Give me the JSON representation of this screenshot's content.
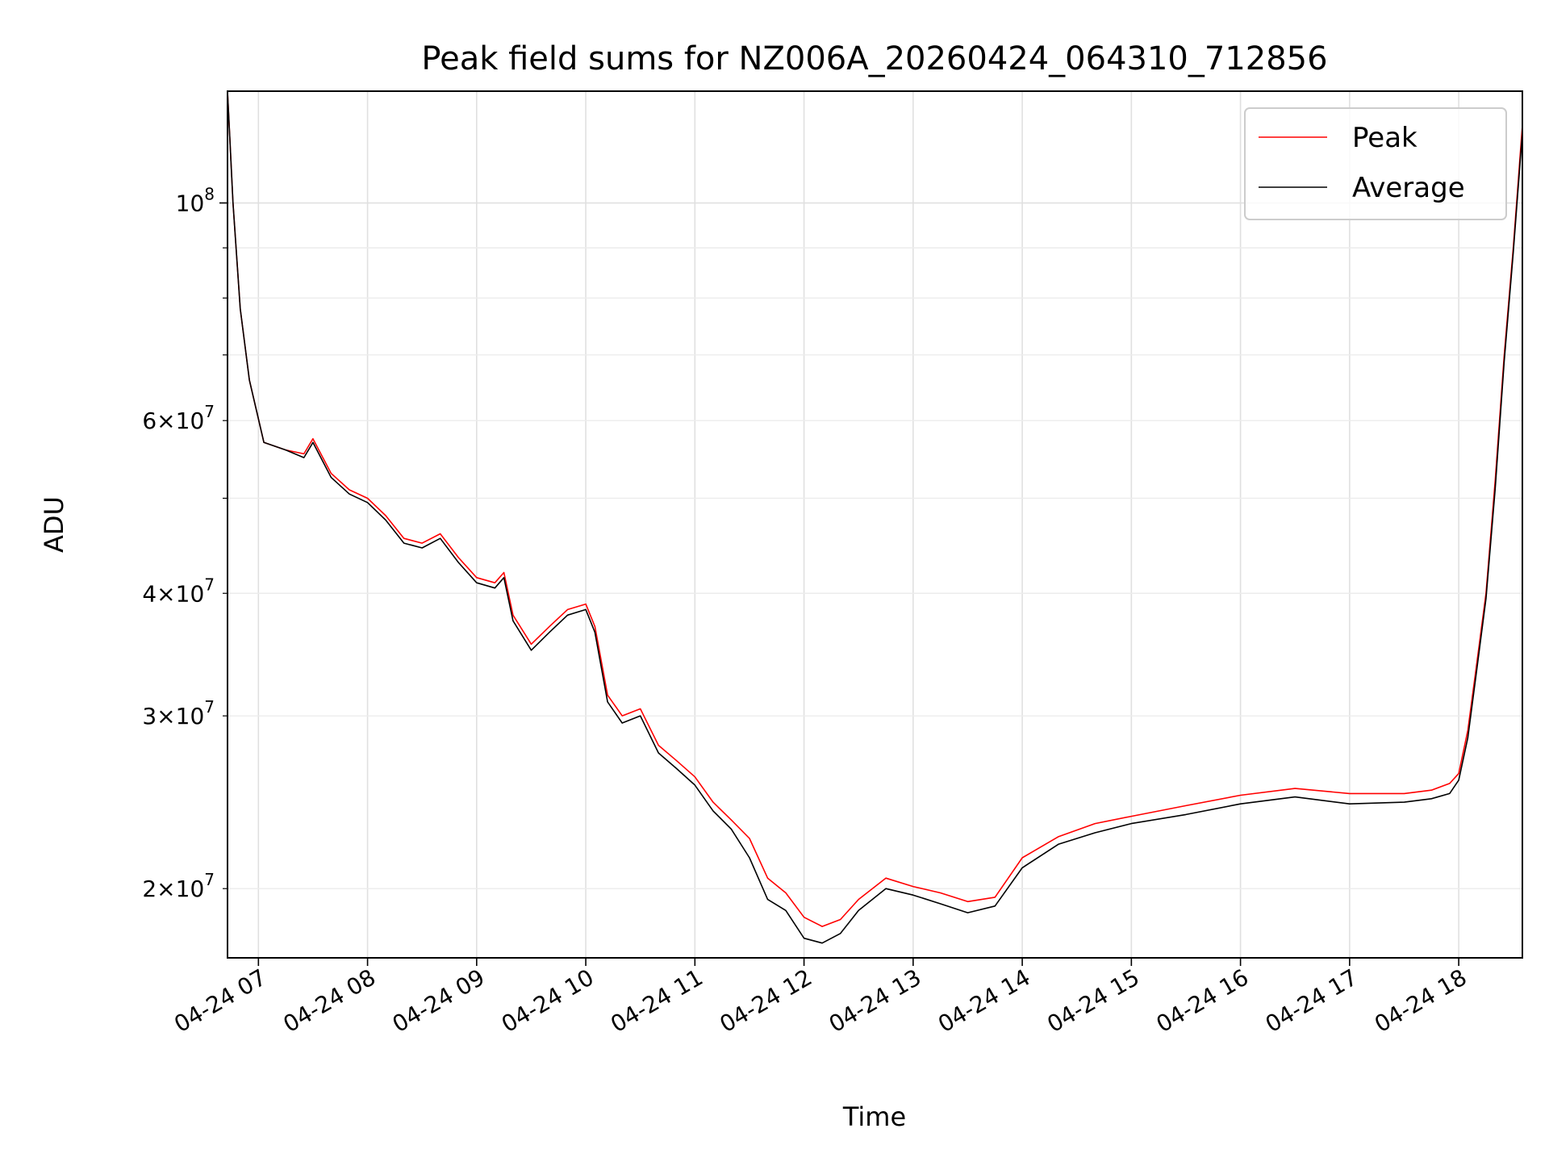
{
  "chart_data": {
    "type": "line",
    "title": "Peak field sums for NZ006A_20260424_064310_712856",
    "xlabel": "Time",
    "ylabel": "ADU",
    "yscale": "log",
    "grid": true,
    "legend_position": "top-right",
    "xlim": [
      "2026-04-24 06:43",
      "2026-04-24 18:35"
    ],
    "ylim": [
      17000000,
      130000000
    ],
    "x_ticks": [
      {
        "value": "2026-04-24 07:00",
        "label": "04-24 07"
      },
      {
        "value": "2026-04-24 08:00",
        "label": "04-24 08"
      },
      {
        "value": "2026-04-24 09:00",
        "label": "04-24 09"
      },
      {
        "value": "2026-04-24 10:00",
        "label": "04-24 10"
      },
      {
        "value": "2026-04-24 11:00",
        "label": "04-24 11"
      },
      {
        "value": "2026-04-24 12:00",
        "label": "04-24 12"
      },
      {
        "value": "2026-04-24 13:00",
        "label": "04-24 13"
      },
      {
        "value": "2026-04-24 14:00",
        "label": "04-24 14"
      },
      {
        "value": "2026-04-24 15:00",
        "label": "04-24 15"
      },
      {
        "value": "2026-04-24 16:00",
        "label": "04-24 16"
      },
      {
        "value": "2026-04-24 17:00",
        "label": "04-24 17"
      },
      {
        "value": "2026-04-24 18:00",
        "label": "04-24 18"
      }
    ],
    "y_major_ticks": [
      {
        "value": 100000000,
        "mantissa": "",
        "exponent": "8"
      }
    ],
    "y_minor_ticks": [
      {
        "value": 20000000,
        "mantissa": "2",
        "exponent": "7"
      },
      {
        "value": 30000000,
        "mantissa": "3",
        "exponent": "7"
      },
      {
        "value": 40000000,
        "mantissa": "4",
        "exponent": "7"
      },
      {
        "value": 50000000,
        "mantissa": "",
        "exponent": ""
      },
      {
        "value": 60000000,
        "mantissa": "6",
        "exponent": "7"
      },
      {
        "value": 70000000,
        "mantissa": "",
        "exponent": ""
      },
      {
        "value": 80000000,
        "mantissa": "",
        "exponent": ""
      },
      {
        "value": 90000000,
        "mantissa": "",
        "exponent": ""
      }
    ],
    "series": [
      {
        "name": "Peak",
        "color": "#ff0000",
        "x": [
          "2026-04-24 06:43",
          "2026-04-24 06:46",
          "2026-04-24 06:50",
          "2026-04-24 06:55",
          "2026-04-24 07:03",
          "2026-04-24 07:15",
          "2026-04-24 07:25",
          "2026-04-24 07:30",
          "2026-04-24 07:40",
          "2026-04-24 07:50",
          "2026-04-24 08:00",
          "2026-04-24 08:10",
          "2026-04-24 08:20",
          "2026-04-24 08:30",
          "2026-04-24 08:40",
          "2026-04-24 08:50",
          "2026-04-24 09:00",
          "2026-04-24 09:10",
          "2026-04-24 09:15",
          "2026-04-24 09:20",
          "2026-04-24 09:30",
          "2026-04-24 09:40",
          "2026-04-24 09:50",
          "2026-04-24 10:00",
          "2026-04-24 10:05",
          "2026-04-24 10:12",
          "2026-04-24 10:20",
          "2026-04-24 10:30",
          "2026-04-24 10:40",
          "2026-04-24 10:50",
          "2026-04-24 11:00",
          "2026-04-24 11:10",
          "2026-04-24 11:20",
          "2026-04-24 11:30",
          "2026-04-24 11:40",
          "2026-04-24 11:50",
          "2026-04-24 12:00",
          "2026-04-24 12:10",
          "2026-04-24 12:20",
          "2026-04-24 12:30",
          "2026-04-24 12:45",
          "2026-04-24 13:00",
          "2026-04-24 13:15",
          "2026-04-24 13:30",
          "2026-04-24 13:45",
          "2026-04-24 14:00",
          "2026-04-24 14:20",
          "2026-04-24 14:40",
          "2026-04-24 15:00",
          "2026-04-24 15:30",
          "2026-04-24 16:00",
          "2026-04-24 16:30",
          "2026-04-24 17:00",
          "2026-04-24 17:30",
          "2026-04-24 17:45",
          "2026-04-24 17:55",
          "2026-04-24 18:00",
          "2026-04-24 18:05",
          "2026-04-24 18:10",
          "2026-04-24 18:15",
          "2026-04-24 18:20",
          "2026-04-24 18:25",
          "2026-04-24 18:30",
          "2026-04-24 18:35"
        ],
        "values": [
          130000000,
          100000000,
          78000000,
          66000000,
          57000000,
          56000000,
          55500000,
          57500000,
          53000000,
          51000000,
          50000000,
          48000000,
          45500000,
          45000000,
          46000000,
          43500000,
          41500000,
          41000000,
          42000000,
          38000000,
          35500000,
          37000000,
          38500000,
          39000000,
          37000000,
          31500000,
          30000000,
          30500000,
          28000000,
          27000000,
          26000000,
          24500000,
          23500000,
          22500000,
          20500000,
          19800000,
          18700000,
          18300000,
          18600000,
          19500000,
          20500000,
          20100000,
          19800000,
          19400000,
          19600000,
          21500000,
          22600000,
          23300000,
          23700000,
          24300000,
          24900000,
          25300000,
          25000000,
          25000000,
          25200000,
          25600000,
          26200000,
          29000000,
          34000000,
          40000000,
          52000000,
          70000000,
          90000000,
          120000000
        ]
      },
      {
        "name": "Average",
        "color": "#000000",
        "x": [
          "2026-04-24 06:43",
          "2026-04-24 06:46",
          "2026-04-24 06:50",
          "2026-04-24 06:55",
          "2026-04-24 07:03",
          "2026-04-24 07:15",
          "2026-04-24 07:25",
          "2026-04-24 07:30",
          "2026-04-24 07:40",
          "2026-04-24 07:50",
          "2026-04-24 08:00",
          "2026-04-24 08:10",
          "2026-04-24 08:20",
          "2026-04-24 08:30",
          "2026-04-24 08:40",
          "2026-04-24 08:50",
          "2026-04-24 09:00",
          "2026-04-24 09:10",
          "2026-04-24 09:15",
          "2026-04-24 09:20",
          "2026-04-24 09:30",
          "2026-04-24 09:40",
          "2026-04-24 09:50",
          "2026-04-24 10:00",
          "2026-04-24 10:05",
          "2026-04-24 10:12",
          "2026-04-24 10:20",
          "2026-04-24 10:30",
          "2026-04-24 10:40",
          "2026-04-24 10:50",
          "2026-04-24 11:00",
          "2026-04-24 11:10",
          "2026-04-24 11:20",
          "2026-04-24 11:30",
          "2026-04-24 11:40",
          "2026-04-24 11:50",
          "2026-04-24 12:00",
          "2026-04-24 12:10",
          "2026-04-24 12:20",
          "2026-04-24 12:30",
          "2026-04-24 12:45",
          "2026-04-24 13:00",
          "2026-04-24 13:15",
          "2026-04-24 13:30",
          "2026-04-24 13:45",
          "2026-04-24 14:00",
          "2026-04-24 14:20",
          "2026-04-24 14:40",
          "2026-04-24 15:00",
          "2026-04-24 15:30",
          "2026-04-24 16:00",
          "2026-04-24 16:30",
          "2026-04-24 17:00",
          "2026-04-24 17:30",
          "2026-04-24 17:45",
          "2026-04-24 17:55",
          "2026-04-24 18:00",
          "2026-04-24 18:05",
          "2026-04-24 18:10",
          "2026-04-24 18:15",
          "2026-04-24 18:20",
          "2026-04-24 18:25",
          "2026-04-24 18:30",
          "2026-04-24 18:35"
        ],
        "values": [
          130000000,
          100000000,
          78000000,
          66000000,
          57000000,
          56000000,
          55000000,
          57000000,
          52500000,
          50500000,
          49500000,
          47500000,
          45000000,
          44500000,
          45500000,
          43000000,
          41000000,
          40500000,
          41500000,
          37500000,
          35000000,
          36500000,
          38000000,
          38500000,
          36500000,
          31000000,
          29500000,
          30000000,
          27500000,
          26500000,
          25500000,
          24000000,
          23000000,
          21500000,
          19500000,
          19000000,
          17800000,
          17600000,
          18000000,
          19000000,
          20000000,
          19700000,
          19300000,
          18900000,
          19200000,
          21000000,
          22200000,
          22800000,
          23300000,
          23800000,
          24400000,
          24800000,
          24400000,
          24500000,
          24700000,
          25000000,
          25800000,
          28500000,
          33500000,
          39500000,
          51000000,
          69000000,
          89000000,
          118000000
        ]
      }
    ]
  }
}
